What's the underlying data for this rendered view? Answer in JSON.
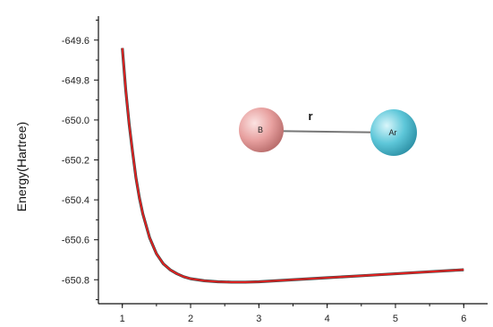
{
  "chart_data": {
    "type": "line",
    "xlabel": "",
    "ylabel": "Energy(Hartree)",
    "xlim": [
      0.65,
      6.35
    ],
    "ylim": [
      -650.92,
      -649.48
    ],
    "x_ticks": [
      1,
      2,
      3,
      4,
      5,
      6
    ],
    "x_tick_labels": [
      "1",
      "2",
      "3",
      "4",
      "5",
      "6"
    ],
    "y_ticks": [
      -649.6,
      -649.8,
      -650.0,
      -650.2,
      -650.4,
      -650.6,
      -650.8
    ],
    "y_tick_labels": [
      "-649.6",
      "-649.8",
      "-650.0",
      "-650.2",
      "-650.4",
      "-650.6",
      "-650.8"
    ],
    "grid": false,
    "legend": "none",
    "series": [
      {
        "color": "#e8201f",
        "x": [
          1.0,
          1.05,
          1.1,
          1.15,
          1.2,
          1.25,
          1.3,
          1.4,
          1.5,
          1.6,
          1.7,
          1.8,
          1.9,
          2.0,
          2.2,
          2.4,
          2.6,
          2.8,
          3.0,
          3.5,
          4.0,
          4.5,
          5.0,
          5.5,
          6.0
        ],
        "y": [
          -649.64,
          -649.85,
          -650.02,
          -650.16,
          -650.29,
          -650.39,
          -650.47,
          -650.59,
          -650.67,
          -650.72,
          -650.75,
          -650.77,
          -650.785,
          -650.795,
          -650.805,
          -650.81,
          -650.812,
          -650.812,
          -650.81,
          -650.8,
          -650.79,
          -650.78,
          -650.77,
          -650.76,
          -650.75
        ]
      }
    ],
    "inset": {
      "atoms": [
        {
          "label": "B",
          "color": "#e8a1a0"
        },
        {
          "label": "Ar",
          "color": "#5ec7d9"
        }
      ],
      "bond_label": "r"
    }
  }
}
